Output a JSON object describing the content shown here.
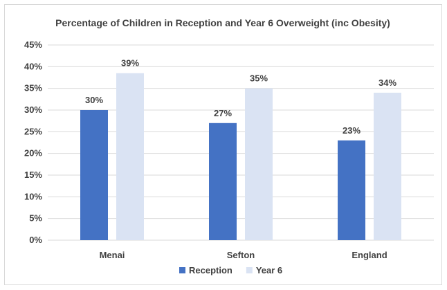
{
  "chart_data": {
    "type": "bar",
    "title": "Percentage of Children in Reception and Year 6 Overweight (inc Obesity)",
    "categories": [
      "Menai",
      "Sefton",
      "England"
    ],
    "series": [
      {
        "name": "Reception",
        "values": [
          30,
          27,
          23
        ],
        "labels": [
          "30%",
          "27%",
          "23%"
        ],
        "color": "#4472c4"
      },
      {
        "name": "Year 6",
        "values": [
          38.5,
          35,
          34
        ],
        "labels": [
          "39%",
          "35%",
          "34%"
        ],
        "color": "#dae3f3"
      }
    ],
    "ylim": [
      0,
      45
    ],
    "yticks": [
      0,
      5,
      10,
      15,
      20,
      25,
      30,
      35,
      40,
      45
    ],
    "ytick_labels": [
      "0%",
      "5%",
      "10%",
      "15%",
      "20%",
      "25%",
      "30%",
      "35%",
      "40%",
      "45%"
    ],
    "grid": true,
    "legend_position": "bottom",
    "gridline_color": "#d9d9d9"
  }
}
